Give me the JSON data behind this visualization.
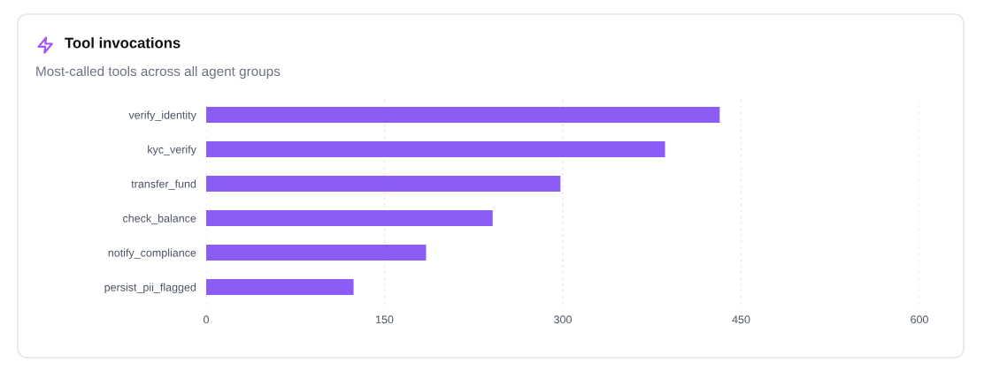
{
  "chart_data": {
    "type": "bar",
    "orientation": "horizontal",
    "title": "Tool invocations",
    "subtitle": "Most-called tools across all agent groups",
    "categories": [
      "verify_identity",
      "kyc_verify",
      "transfer_fund",
      "check_balance",
      "notify_compliance",
      "persist_pii_flagged"
    ],
    "values": [
      432,
      386,
      298,
      241,
      185,
      124
    ],
    "color": "#8b5cf6",
    "xlim": [
      0,
      600
    ],
    "xticks": [
      0,
      150,
      300,
      450,
      600
    ],
    "grid": "x"
  }
}
